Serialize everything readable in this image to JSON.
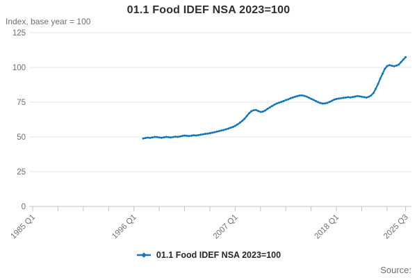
{
  "title": "01.1 Food IDEF NSA 2023=100",
  "unit_label": "Index, base year = 100",
  "source_label": "Source:",
  "legend": {
    "series_label": "01.1 Food IDEF NSA 2023=100"
  },
  "colors": {
    "series": "#1076be",
    "grid": "#e4e4e4",
    "axis": "#b9c3d8",
    "muted_text": "#6f6f6f",
    "title_text": "#2e2e2e"
  },
  "chart_data": {
    "type": "line",
    "title": "01.1 Food IDEF NSA 2023=100",
    "ylabel": "Index, base year = 100",
    "ylim": [
      0,
      125
    ],
    "yticks": [
      0,
      25,
      50,
      75,
      100,
      125
    ],
    "xtick_labels": [
      "1985 Q1",
      "1996 Q1",
      "2007 Q1",
      "2018 Q1",
      "2025 Q3"
    ],
    "x_axis_range": [
      "1985 Q1",
      "2025 Q3"
    ],
    "data_start": "1997 Q1",
    "data_end": "2025 Q3",
    "frequency": "quarterly",
    "grid": "horizontal",
    "legend_position": "bottom",
    "marker": "dot",
    "series": [
      {
        "name": "01.1 Food IDEF NSA 2023=100",
        "values": [
          48.9,
          49.2,
          49.5,
          49.3,
          49.6,
          50.0,
          49.9,
          49.6,
          49.4,
          49.7,
          50.0,
          49.8,
          49.6,
          49.9,
          50.2,
          50.0,
          50.3,
          50.7,
          51.0,
          50.8,
          50.6,
          50.9,
          51.2,
          51.0,
          51.3,
          51.6,
          51.9,
          52.2,
          52.4,
          52.7,
          53.0,
          53.4,
          53.8,
          54.2,
          54.6,
          55.0,
          55.5,
          56.0,
          56.6,
          57.2,
          58.0,
          59.0,
          60.2,
          61.5,
          63.0,
          65.0,
          67.0,
          68.5,
          69.2,
          69.4,
          68.6,
          68.0,
          68.2,
          69.0,
          70.2,
          71.2,
          72.2,
          73.2,
          74.0,
          74.6,
          75.2,
          75.8,
          76.5,
          77.0,
          77.8,
          78.4,
          78.9,
          79.4,
          79.8,
          79.9,
          79.5,
          79.0,
          78.2,
          77.4,
          76.6,
          75.8,
          75.0,
          74.4,
          74.0,
          74.1,
          74.5,
          75.2,
          76.0,
          76.8,
          77.3,
          77.6,
          77.9,
          78.1,
          78.3,
          78.6,
          78.4,
          78.7,
          79.0,
          79.4,
          79.2,
          78.9,
          78.6,
          78.3,
          78.9,
          79.8,
          81.5,
          84.5,
          88.0,
          92.0,
          95.5,
          99.0,
          101.0,
          101.6,
          101.2,
          100.9,
          101.3,
          102.0,
          103.8,
          105.6,
          107.4
        ]
      }
    ]
  }
}
